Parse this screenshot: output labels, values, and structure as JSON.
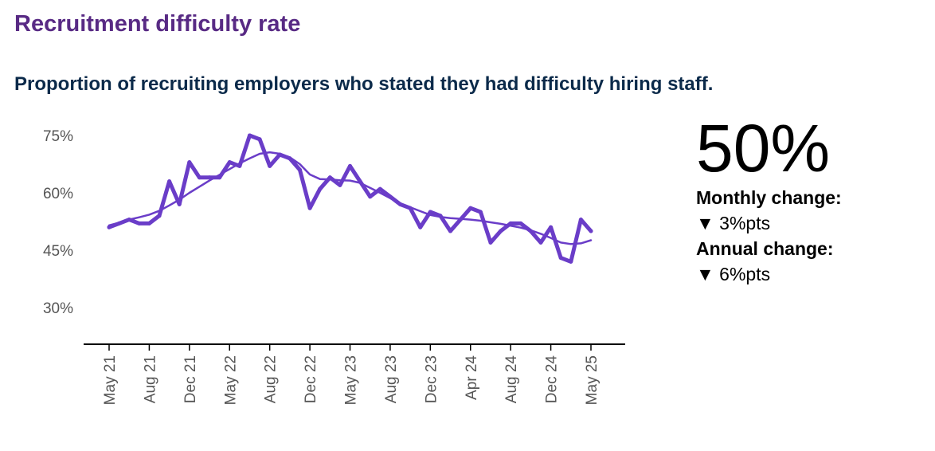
{
  "title": "Recruitment difficulty rate",
  "subtitle": "Proportion of recruiting employers who stated they had difficulty hiring staff.",
  "kpi": {
    "value": "50%",
    "monthly_label": "Monthly change:",
    "monthly_value": "▼ 3%pts",
    "annual_label": "Annual change:",
    "annual_value": "▼ 6%pts"
  },
  "chart_data": {
    "type": "line",
    "title": "",
    "xlabel": "",
    "ylabel": "",
    "ylim": [
      25,
      76
    ],
    "y_ticks": [
      75,
      60,
      45,
      30
    ],
    "y_tick_labels": [
      "75%",
      "60%",
      "45%",
      "30%"
    ],
    "x_tick_labels": [
      "May 21",
      "Aug 21",
      "Dec 21",
      "May 22",
      "Aug 22",
      "Dec 22",
      "May 23",
      "Aug 23",
      "Dec 23",
      "Apr 24",
      "Aug 24",
      "Dec 24",
      "May 25"
    ],
    "grid": false,
    "color": "#6a3dc8",
    "series": [
      {
        "values": [
          51,
          52,
          53,
          52,
          52,
          54,
          63,
          57,
          68,
          64,
          64,
          64,
          68,
          67,
          75,
          74,
          67,
          70,
          69,
          66,
          56,
          61,
          64,
          62,
          67,
          63,
          59,
          61,
          59,
          57,
          56,
          51,
          55,
          54,
          50,
          53,
          56,
          55,
          47,
          50,
          52,
          52,
          50,
          47,
          51,
          43,
          42,
          53,
          50
        ]
      },
      {
        "values": [
          51.5,
          52.2,
          53,
          53.6,
          54.3,
          55.3,
          56.7,
          58.2,
          60,
          61.6,
          63.2,
          64.7,
          66.2,
          67.7,
          69,
          70.2,
          70.6,
          70.2,
          69.3,
          67.5,
          64.8,
          63.6,
          63.5,
          63.3,
          63.2,
          62.6,
          61.3,
          60,
          58.6,
          57.3,
          56.2,
          55.2,
          54.2,
          53.7,
          53.4,
          53.2,
          53,
          52.7,
          52.3,
          51.9,
          51.4,
          50.9,
          50.2,
          49.3,
          48.2,
          47,
          46.6,
          46.8,
          47.6
        ]
      }
    ]
  }
}
